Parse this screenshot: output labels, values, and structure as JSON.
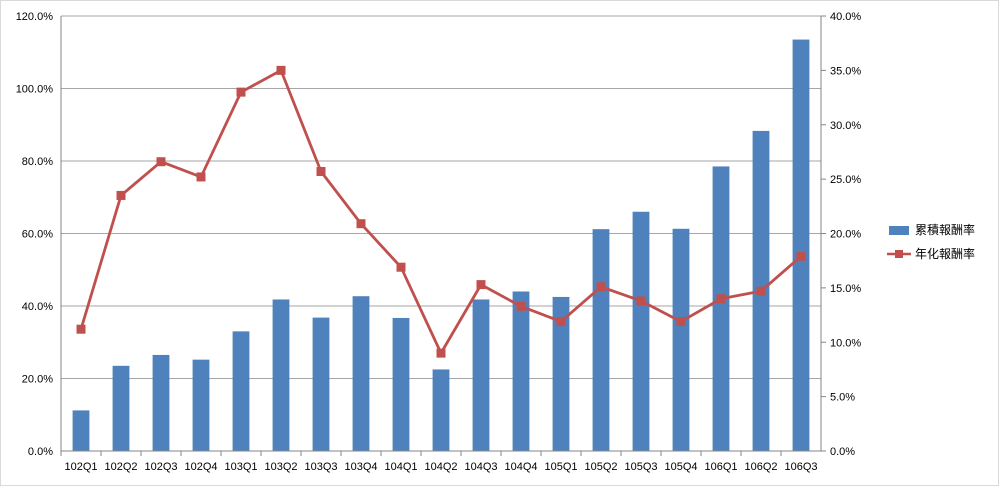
{
  "chart_data": {
    "type": "bar",
    "categories": [
      "102Q1",
      "102Q2",
      "102Q3",
      "102Q4",
      "103Q1",
      "103Q2",
      "103Q3",
      "103Q4",
      "104Q1",
      "104Q2",
      "104Q3",
      "104Q4",
      "105Q1",
      "105Q2",
      "105Q3",
      "105Q4",
      "106Q1",
      "106Q2",
      "106Q3"
    ],
    "series": [
      {
        "name": "累積報酬率",
        "type": "bar",
        "axis": "left",
        "color": "#4f81bd",
        "values": [
          11.2,
          23.5,
          26.5,
          25.2,
          33.0,
          41.8,
          36.8,
          42.7,
          36.7,
          22.5,
          41.8,
          44.0,
          42.5,
          61.2,
          66.0,
          61.3,
          78.5,
          88.3,
          113.5
        ]
      },
      {
        "name": "年化報酬率",
        "type": "line",
        "axis": "right",
        "color": "#c0504d",
        "values": [
          11.2,
          23.5,
          26.6,
          25.2,
          33.0,
          35.0,
          25.7,
          20.9,
          16.9,
          9.0,
          15.3,
          13.3,
          11.9,
          15.1,
          13.8,
          11.9,
          14.0,
          14.7,
          17.9
        ]
      }
    ],
    "yaxis_left": {
      "range": [
        0,
        120
      ],
      "ticks": [
        "0.0%",
        "20.0%",
        "40.0%",
        "60.0%",
        "80.0%",
        "100.0%",
        "120.0%"
      ]
    },
    "yaxis_right": {
      "range": [
        0,
        40
      ],
      "ticks": [
        "0.0%",
        "5.0%",
        "10.0%",
        "15.0%",
        "20.0%",
        "25.0%",
        "30.0%",
        "35.0%",
        "40.0%"
      ]
    },
    "grid": true,
    "legend": "right",
    "title": "",
    "xlabel": "",
    "ylabel": ""
  }
}
